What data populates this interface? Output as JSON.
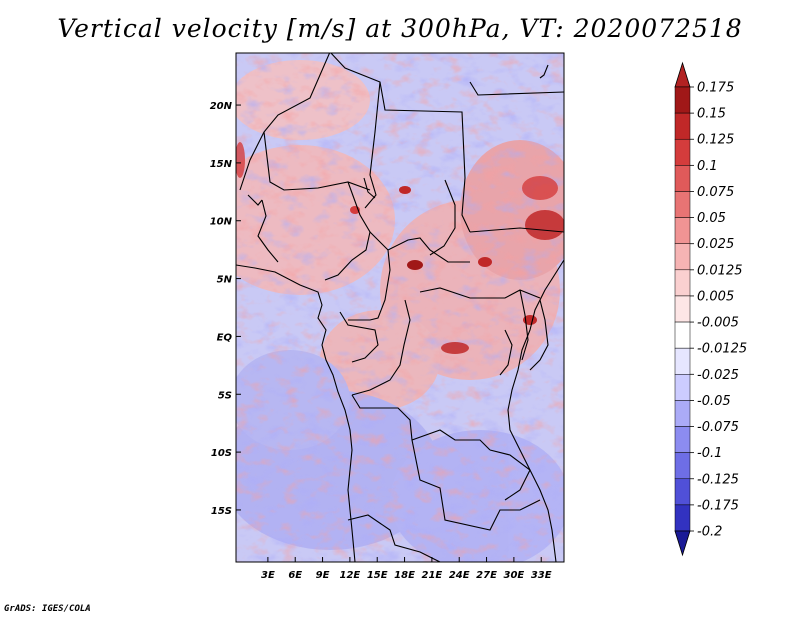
{
  "title": "Vertical velocity [m/s] at 300hPa, VT: 2020072518",
  "credit": "GrADS: IGES/COLA",
  "map": {
    "lat_range": [
      -19.5,
      24.5
    ],
    "lon_range": [
      -0.5,
      35.5
    ],
    "lat_ticks": [
      {
        "value": 20,
        "label": "20N"
      },
      {
        "value": 15,
        "label": "15N"
      },
      {
        "value": 10,
        "label": "10N"
      },
      {
        "value": 5,
        "label": "5N"
      },
      {
        "value": 0,
        "label": "EQ"
      },
      {
        "value": -5,
        "label": "5S"
      },
      {
        "value": -10,
        "label": "10S"
      },
      {
        "value": -15,
        "label": "15S"
      }
    ],
    "lon_ticks": [
      {
        "value": 3,
        "label": "3E"
      },
      {
        "value": 6,
        "label": "6E"
      },
      {
        "value": 9,
        "label": "9E"
      },
      {
        "value": 12,
        "label": "12E"
      },
      {
        "value": 15,
        "label": "15E"
      },
      {
        "value": 18,
        "label": "18E"
      },
      {
        "value": 21,
        "label": "21E"
      },
      {
        "value": 24,
        "label": "24E"
      },
      {
        "value": 27,
        "label": "27E"
      },
      {
        "value": 30,
        "label": "30E"
      },
      {
        "value": 33,
        "label": "33E"
      }
    ]
  },
  "colorbar": {
    "levels": [
      {
        "label": "0.175",
        "color": "#a01818"
      },
      {
        "label": "0.15",
        "color": "#c02828"
      },
      {
        "label": "0.125",
        "color": "#d43c3c"
      },
      {
        "label": "0.1",
        "color": "#e05a5a"
      },
      {
        "label": "0.075",
        "color": "#e87474"
      },
      {
        "label": "0.05",
        "color": "#f09494"
      },
      {
        "label": "0.025",
        "color": "#f6b4b4"
      },
      {
        "label": "0.0125",
        "color": "#fad0d0"
      },
      {
        "label": "0.005",
        "color": "#fde6e6"
      },
      {
        "label": "-0.005",
        "color": "#ffffff"
      },
      {
        "label": "-0.0125",
        "color": "#e6e6ff"
      },
      {
        "label": "-0.025",
        "color": "#ccccff"
      },
      {
        "label": "-0.05",
        "color": "#ababf7"
      },
      {
        "label": "-0.075",
        "color": "#8c8cf0"
      },
      {
        "label": "-0.1",
        "color": "#6e6ee6"
      },
      {
        "label": "-0.125",
        "color": "#5050d8"
      },
      {
        "label": "-0.175",
        "color": "#3232c0"
      },
      {
        "label": "-0.2",
        "color": "#1e1ea6"
      }
    ],
    "top_color": "#b22222",
    "bottom_color": "#1a1a96"
  }
}
